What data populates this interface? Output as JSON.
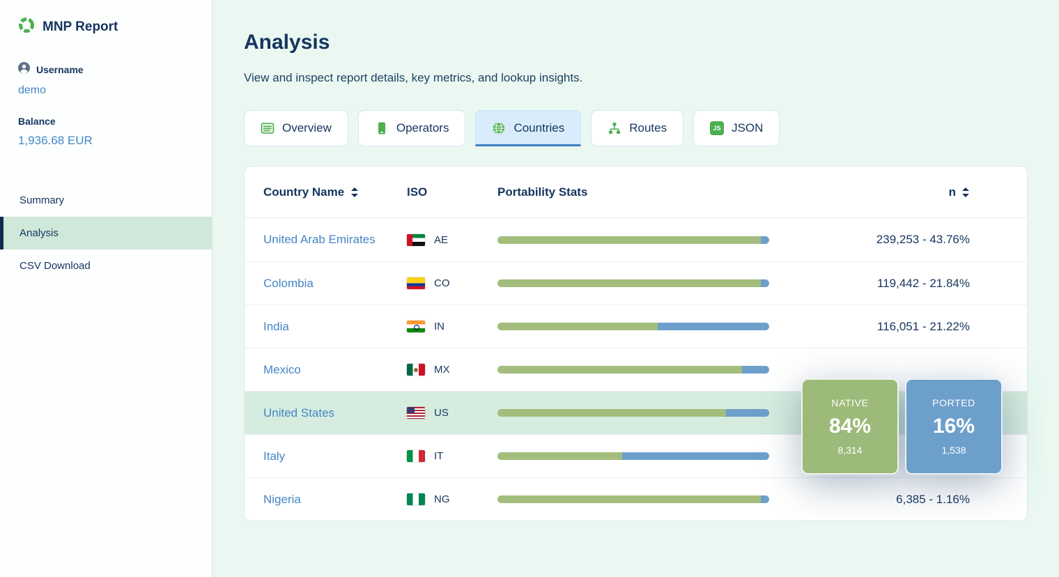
{
  "colors": {
    "bar_native": "#a3bd7d",
    "bar_ported": "#6d9fcb",
    "accent_green": "#4caf50",
    "link_blue": "#4486c6",
    "navy": "#15355e",
    "highlight_row": "#d6ecdf",
    "active_tab_bg": "#d8ecfb",
    "main_bg": "#eaf8f1",
    "active_nav_bg": "#cfe8da"
  },
  "sidebar": {
    "app_title": "MNP Report",
    "username_label": "Username",
    "username_value": "demo",
    "balance_label": "Balance",
    "balance_value": "1,936.68 EUR",
    "nav": [
      {
        "label": "Summary"
      },
      {
        "label": "Analysis"
      },
      {
        "label": "CSV Download"
      }
    ]
  },
  "main": {
    "title": "Analysis",
    "subtitle": "View and inspect report details, key metrics, and lookup insights.",
    "tabs": [
      {
        "label": "Overview",
        "icon": "list-icon"
      },
      {
        "label": "Operators",
        "icon": "mobile-icon"
      },
      {
        "label": "Countries",
        "icon": "globe-icon"
      },
      {
        "label": "Routes",
        "icon": "sitemap-icon"
      },
      {
        "label": "JSON",
        "icon": "json-badge-icon",
        "icon_text": "JS"
      }
    ],
    "active_tab": "Countries",
    "table": {
      "columns": {
        "country": "Country Name",
        "iso": "ISO",
        "stats": "Portability Stats",
        "n": "n"
      },
      "rows": [
        {
          "country": "United Arab Emirates",
          "iso": "AE",
          "native_pct": 97,
          "ported_pct": 3,
          "n": "239,253 - 43.76%",
          "highlighted": false
        },
        {
          "country": "Colombia",
          "iso": "CO",
          "native_pct": 97,
          "ported_pct": 3,
          "n": "119,442 - 21.84%",
          "highlighted": false
        },
        {
          "country": "India",
          "iso": "IN",
          "native_pct": 59,
          "ported_pct": 41,
          "n": "116,051 - 21.22%",
          "highlighted": false
        },
        {
          "country": "Mexico",
          "iso": "MX",
          "native_pct": 90,
          "ported_pct": 10,
          "n": "",
          "highlighted": false
        },
        {
          "country": "United States",
          "iso": "US",
          "native_pct": 84,
          "ported_pct": 16,
          "n": "",
          "highlighted": true
        },
        {
          "country": "Italy",
          "iso": "IT",
          "native_pct": 46,
          "ported_pct": 54,
          "n": "",
          "highlighted": false
        },
        {
          "country": "Nigeria",
          "iso": "NG",
          "native_pct": 97,
          "ported_pct": 3,
          "n": "6,385 - 1.16%",
          "highlighted": false
        }
      ]
    },
    "tooltip": {
      "native_label": "NATIVE",
      "native_pct": "84%",
      "native_count": "8,314",
      "ported_label": "PORTED",
      "ported_pct": "16%",
      "ported_count": "1,538"
    }
  }
}
